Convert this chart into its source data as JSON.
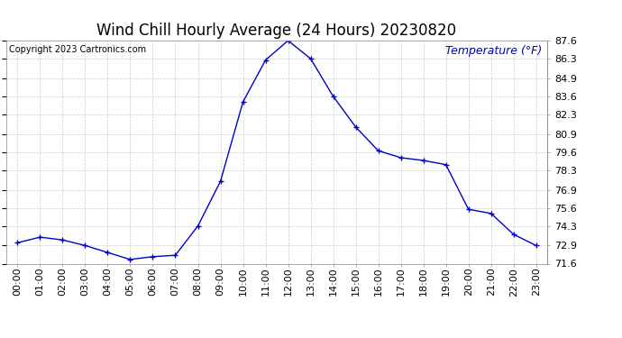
{
  "title": "Wind Chill Hourly Average (24 Hours) 20230820",
  "copyright_text": "Copyright 2023 Cartronics.com",
  "ylabel": "Temperature (°F)",
  "ylabel_color": "#0000bb",
  "hours": [
    "00:00",
    "01:00",
    "02:00",
    "03:00",
    "04:00",
    "05:00",
    "06:00",
    "07:00",
    "08:00",
    "09:00",
    "10:00",
    "11:00",
    "12:00",
    "13:00",
    "14:00",
    "15:00",
    "16:00",
    "17:00",
    "18:00",
    "19:00",
    "20:00",
    "21:00",
    "22:00",
    "23:00"
  ],
  "values": [
    73.1,
    73.5,
    73.3,
    72.9,
    72.4,
    71.9,
    72.1,
    72.2,
    74.3,
    77.5,
    83.2,
    86.2,
    87.6,
    86.3,
    83.6,
    81.4,
    79.7,
    79.2,
    79.0,
    78.7,
    75.5,
    75.2,
    73.7,
    72.9
  ],
  "line_color": "#0000cc",
  "marker": "+",
  "marker_size": 4,
  "ylim_min": 71.6,
  "ylim_max": 87.6,
  "yticks": [
    71.6,
    72.9,
    74.3,
    75.6,
    76.9,
    78.3,
    79.6,
    80.9,
    82.3,
    83.6,
    84.9,
    86.3,
    87.6
  ],
  "background_color": "#ffffff",
  "grid_color": "#cccccc",
  "title_fontsize": 12,
  "tick_fontsize": 8,
  "copyright_fontsize": 7,
  "ylabel_fontsize": 9
}
